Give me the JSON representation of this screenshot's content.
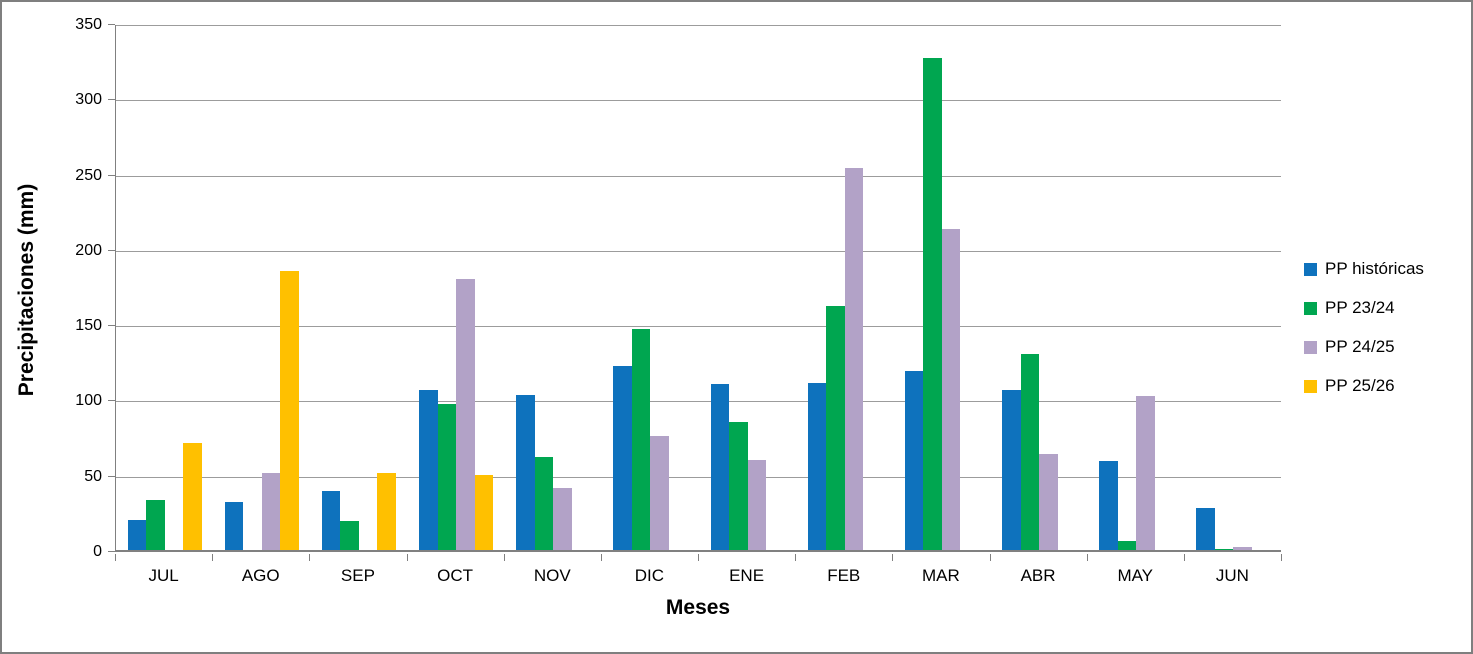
{
  "chart_data": {
    "type": "bar",
    "title": "",
    "xlabel": "Meses",
    "ylabel": "Precipitaciones (mm)",
    "ylim": [
      0,
      350
    ],
    "yticks": [
      0,
      50,
      100,
      150,
      200,
      250,
      300,
      350
    ],
    "grid": true,
    "legend_position": "right",
    "categories": [
      "JUL",
      "AGO",
      "SEP",
      "OCT",
      "NOV",
      "DIC",
      "ENE",
      "FEB",
      "MAR",
      "ABR",
      "MAY",
      "JUN"
    ],
    "series": [
      {
        "name": "PP históricas",
        "color": "#0e72bd",
        "values": [
          20,
          32,
          39,
          106,
          103,
          122,
          110,
          111,
          119,
          106,
          59,
          28
        ]
      },
      {
        "name": "PP 23/24",
        "color": "#00a650",
        "values": [
          33,
          0,
          19,
          97,
          62,
          147,
          85,
          162,
          327,
          130,
          6,
          1
        ]
      },
      {
        "name": "PP 24/25",
        "color": "#b2a2c7",
        "values": [
          0,
          51,
          0,
          180,
          41,
          76,
          60,
          254,
          213,
          64,
          102,
          2
        ]
      },
      {
        "name": "PP 25/26",
        "color": "#ffc000",
        "values": [
          71,
          185,
          51,
          50,
          0,
          0,
          0,
          0,
          0,
          0,
          0,
          0
        ]
      }
    ],
    "colors": {
      "gridline": "#9c9c9c",
      "axis": "#808080",
      "frame_border": "#7f7f7f",
      "text": "#000000"
    }
  }
}
